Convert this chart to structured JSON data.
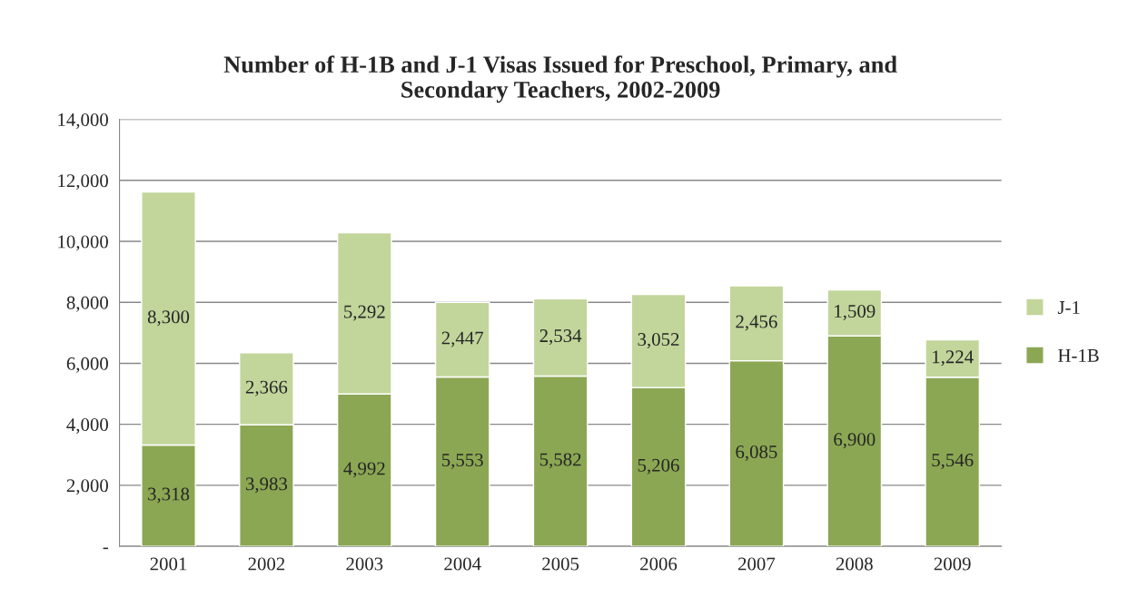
{
  "chart_data": {
    "type": "bar",
    "stacked": true,
    "title": "Number of H-1B and J-1 Visas Issued for Preschool, Primary, and\nSecondary Teachers, 2002-2009",
    "categories": [
      "2001",
      "2002",
      "2003",
      "2004",
      "2005",
      "2006",
      "2007",
      "2008",
      "2009"
    ],
    "series": [
      {
        "name": "H-1B",
        "color": "#8ba753",
        "values": [
          3318,
          3983,
          4992,
          5553,
          5582,
          5206,
          6085,
          6900,
          5546
        ],
        "value_labels": [
          "3,318",
          "3,983",
          "4,992",
          "5,553",
          "5,582",
          "5,206",
          "6,085",
          "6,900",
          "5,546"
        ]
      },
      {
        "name": "J-1",
        "color": "#c2d69b",
        "values": [
          8300,
          2366,
          5292,
          2447,
          2534,
          3052,
          2456,
          1509,
          1224
        ],
        "value_labels": [
          "8,300",
          "2,366",
          "5,292",
          "2,447",
          "2,534",
          "3,052",
          "2,456",
          "1,509",
          "1,224"
        ]
      }
    ],
    "ylim": [
      0,
      14000
    ],
    "yticks": [
      {
        "value": 0,
        "label": "-"
      },
      {
        "value": 2000,
        "label": "2,000"
      },
      {
        "value": 4000,
        "label": "4,000"
      },
      {
        "value": 6000,
        "label": "6,000"
      },
      {
        "value": 8000,
        "label": "8,000"
      },
      {
        "value": 10000,
        "label": "10,000"
      },
      {
        "value": 12000,
        "label": "12,000"
      },
      {
        "value": 14000,
        "label": "14,000"
      }
    ],
    "grid": "y",
    "legend": "right"
  }
}
